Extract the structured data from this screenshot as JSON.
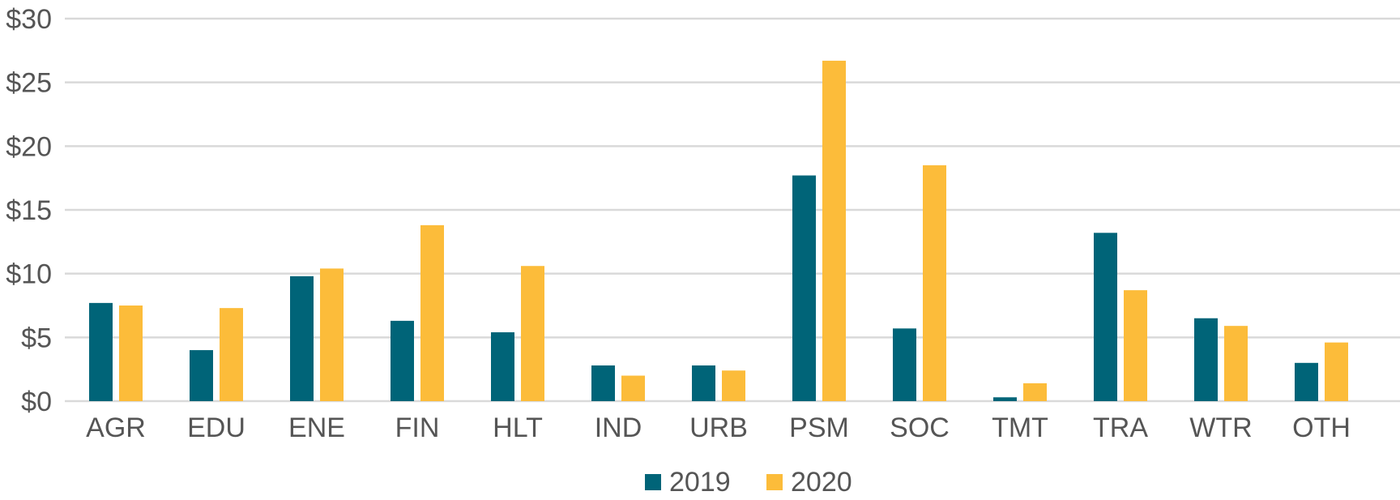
{
  "chart_data": {
    "type": "bar",
    "categories": [
      "AGR",
      "EDU",
      "ENE",
      "FIN",
      "HLT",
      "IND",
      "URB",
      "PSM",
      "SOC",
      "TMT",
      "TRA",
      "WTR",
      "OTH"
    ],
    "series": [
      {
        "name": "2019",
        "color": "#006478",
        "values": [
          7.7,
          4.0,
          9.8,
          6.3,
          5.4,
          2.8,
          2.8,
          17.7,
          5.7,
          0.3,
          13.2,
          6.5,
          3.0
        ]
      },
      {
        "name": "2020",
        "color": "#FCBC3A",
        "values": [
          7.5,
          7.3,
          10.4,
          13.8,
          10.6,
          2.0,
          2.4,
          26.7,
          18.5,
          1.4,
          8.7,
          5.9,
          4.6
        ]
      }
    ],
    "ylim": [
      0,
      30
    ],
    "yticks": [
      0,
      5,
      10,
      15,
      20,
      25,
      30
    ],
    "ytick_labels": [
      "$0",
      "$5",
      "$10",
      "$15",
      "$20",
      "$25",
      "$30"
    ],
    "grid": true,
    "legend_position": "bottom",
    "title": "",
    "xlabel": "",
    "ylabel": ""
  }
}
